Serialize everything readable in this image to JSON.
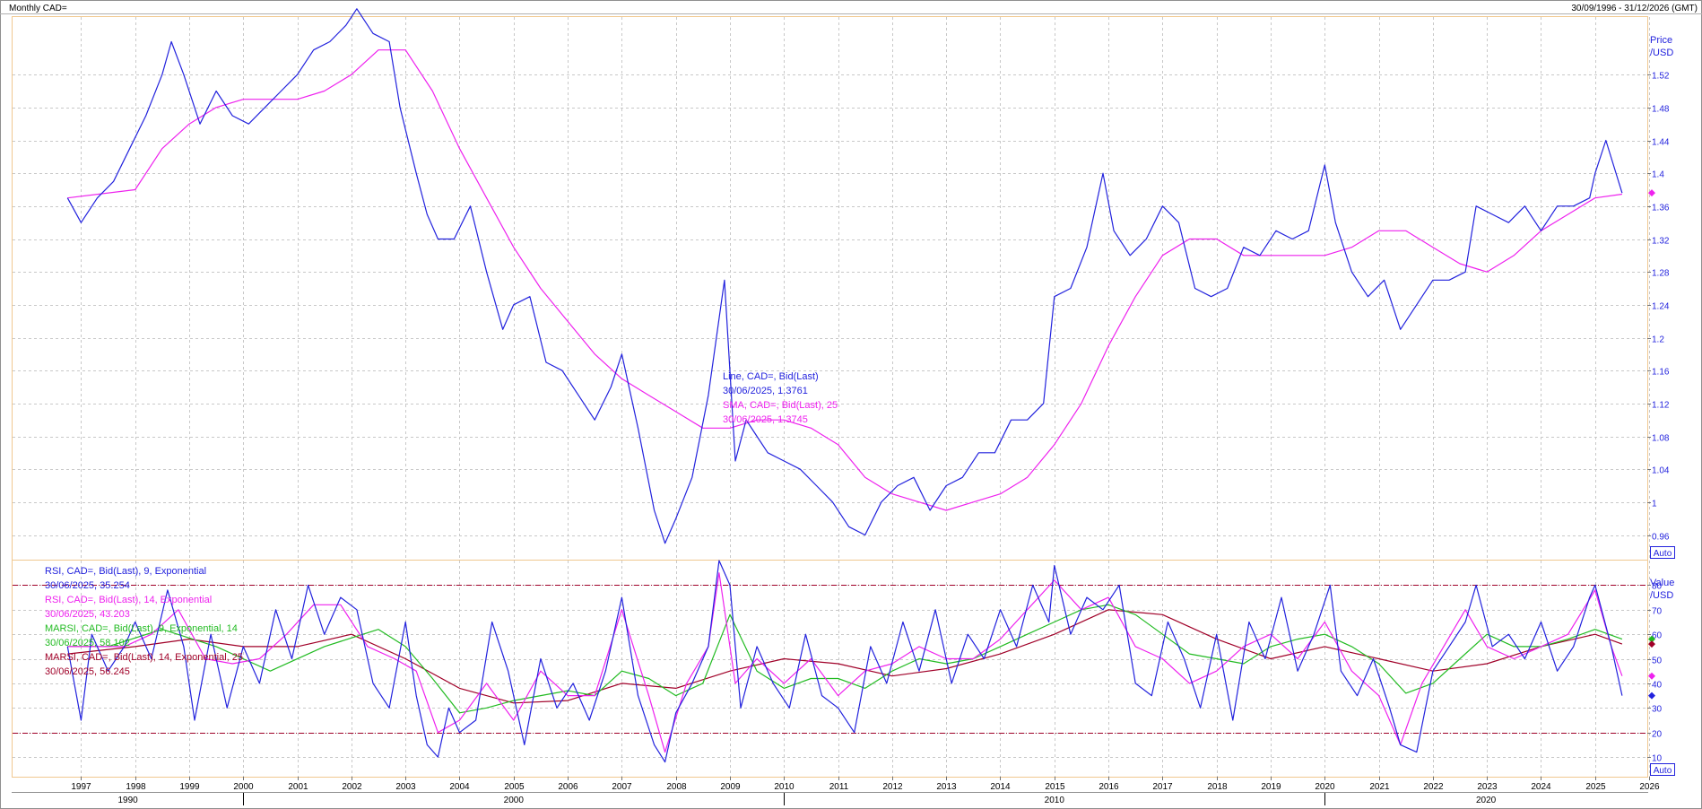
{
  "header": {
    "title": "Monthly CAD=",
    "range": "30/09/1996 - 31/12/2026 (GMT)"
  },
  "price_panel": {
    "axis_title_1": "Price",
    "axis_title_2": "/USD",
    "auto_label": "Auto",
    "legend": [
      {
        "text": "Line, CAD=, Bid(Last)",
        "color": "#2222dd"
      },
      {
        "text": "30/06/2025, 1.3761",
        "color": "#2222dd"
      },
      {
        "text": "SMA, CAD=, Bid(Last),  25",
        "color": "#ee22ee"
      },
      {
        "text": "30/06/2025, 1.3745",
        "color": "#ee22ee"
      }
    ]
  },
  "rsi_panel": {
    "axis_title_1": "Value",
    "axis_title_2": "/USD",
    "auto_label": "Auto",
    "legend": [
      {
        "text": "RSI, CAD=, Bid(Last),  9, Exponential",
        "color": "#2222dd"
      },
      {
        "text": "30/06/2025, 35.254",
        "color": "#2222dd"
      },
      {
        "text": "RSI, CAD=, Bid(Last),  14, Exponential",
        "color": "#ee22ee"
      },
      {
        "text": "30/06/2025, 43.203",
        "color": "#ee22ee"
      },
      {
        "text": "MARSI, CAD=, Bid(Last),  9, Exponential, 14",
        "color": "#22bb22"
      },
      {
        "text": "30/06/2025, 58.102",
        "color": "#22bb22"
      },
      {
        "text": "MARSI, CAD=, Bid(Last),  14, Exponential, 25",
        "color": "#a00028"
      },
      {
        "text": "30/06/2025, 56.245",
        "color": "#a00028"
      }
    ]
  },
  "colors": {
    "line": "#2222dd",
    "sma": "#ee22ee",
    "rsi9": "#2222dd",
    "rsi14": "#ee22ee",
    "marsi9": "#22bb22",
    "marsi14": "#a00028",
    "grid": "#c8c8c8",
    "panel_border": "#f0c890",
    "ref_line": "#a00028"
  },
  "chart_data": [
    {
      "type": "line",
      "title": "Monthly CAD=",
      "ylabel": "Price /USD",
      "ylim": [
        0.93,
        1.59
      ],
      "yticks": [
        "1.52",
        "1.48",
        "1.44",
        "1.4",
        "1.36",
        "1.32",
        "1.28",
        "1.24",
        "1.2",
        "1.16",
        "1.12",
        "1.08",
        "1.04",
        "1",
        "0.96"
      ],
      "x_range": [
        "1996-09",
        "2026-12"
      ],
      "series": [
        {
          "name": "Line, CAD=, Bid(Last)",
          "x": [
            1996.75,
            1997.0,
            1997.3,
            1997.6,
            1997.9,
            1998.2,
            1998.5,
            1998.67,
            1998.9,
            1999.2,
            1999.5,
            1999.8,
            2000.1,
            2000.4,
            2000.7,
            2001.0,
            2001.3,
            2001.6,
            2001.9,
            2002.1,
            2002.4,
            2002.7,
            2002.9,
            2003.2,
            2003.4,
            2003.6,
            2003.9,
            2004.2,
            2004.5,
            2004.8,
            2005.0,
            2005.3,
            2005.6,
            2005.9,
            2006.2,
            2006.5,
            2006.8,
            2007.0,
            2007.3,
            2007.6,
            2007.8,
            2008.0,
            2008.3,
            2008.6,
            2008.9,
            2009.1,
            2009.3,
            2009.5,
            2009.7,
            2010.0,
            2010.3,
            2010.6,
            2010.9,
            2011.2,
            2011.5,
            2011.8,
            2012.1,
            2012.4,
            2012.7,
            2013.0,
            2013.3,
            2013.6,
            2013.9,
            2014.2,
            2014.5,
            2014.8,
            2015.0,
            2015.3,
            2015.6,
            2015.9,
            2016.1,
            2016.4,
            2016.7,
            2017.0,
            2017.3,
            2017.6,
            2017.9,
            2018.2,
            2018.5,
            2018.8,
            2019.1,
            2019.4,
            2019.7,
            2020.0,
            2020.2,
            2020.5,
            2020.8,
            2021.1,
            2021.4,
            2021.7,
            2022.0,
            2022.3,
            2022.6,
            2022.8,
            2023.1,
            2023.4,
            2023.7,
            2024.0,
            2024.3,
            2024.6,
            2024.9,
            2025.0,
            2025.2,
            2025.5
          ],
          "values": [
            1.37,
            1.34,
            1.37,
            1.39,
            1.43,
            1.47,
            1.52,
            1.56,
            1.52,
            1.46,
            1.5,
            1.47,
            1.46,
            1.48,
            1.5,
            1.52,
            1.55,
            1.56,
            1.58,
            1.6,
            1.57,
            1.56,
            1.48,
            1.4,
            1.35,
            1.32,
            1.32,
            1.36,
            1.28,
            1.21,
            1.24,
            1.25,
            1.17,
            1.16,
            1.13,
            1.1,
            1.14,
            1.18,
            1.09,
            0.99,
            0.95,
            0.98,
            1.03,
            1.13,
            1.27,
            1.05,
            1.1,
            1.08,
            1.06,
            1.05,
            1.04,
            1.02,
            1.0,
            0.97,
            0.96,
            1.0,
            1.02,
            1.03,
            0.99,
            1.02,
            1.03,
            1.06,
            1.06,
            1.1,
            1.1,
            1.12,
            1.25,
            1.26,
            1.31,
            1.4,
            1.33,
            1.3,
            1.32,
            1.36,
            1.34,
            1.26,
            1.25,
            1.26,
            1.31,
            1.3,
            1.33,
            1.32,
            1.33,
            1.41,
            1.34,
            1.28,
            1.25,
            1.27,
            1.21,
            1.24,
            1.27,
            1.27,
            1.28,
            1.36,
            1.35,
            1.34,
            1.36,
            1.33,
            1.36,
            1.36,
            1.37,
            1.4,
            1.44,
            1.376
          ]
        },
        {
          "name": "SMA, CAD=, Bid(Last),  25",
          "x": [
            1996.75,
            1998.0,
            1998.5,
            1999.0,
            1999.5,
            2000.0,
            2000.5,
            2001.0,
            2001.5,
            2002.0,
            2002.5,
            2003.0,
            2003.5,
            2004.0,
            2004.5,
            2005.0,
            2005.5,
            2006.0,
            2006.5,
            2007.0,
            2007.5,
            2008.0,
            2008.5,
            2009.0,
            2009.5,
            2010.0,
            2010.5,
            2011.0,
            2011.5,
            2012.0,
            2012.5,
            2013.0,
            2013.5,
            2014.0,
            2014.5,
            2015.0,
            2015.5,
            2016.0,
            2016.5,
            2017.0,
            2017.5,
            2018.0,
            2018.5,
            2019.0,
            2019.5,
            2020.0,
            2020.5,
            2021.0,
            2021.5,
            2022.0,
            2022.5,
            2023.0,
            2023.5,
            2024.0,
            2024.5,
            2025.0,
            2025.5
          ],
          "values": [
            1.37,
            1.38,
            1.43,
            1.46,
            1.48,
            1.49,
            1.49,
            1.49,
            1.5,
            1.52,
            1.55,
            1.55,
            1.5,
            1.43,
            1.37,
            1.31,
            1.26,
            1.22,
            1.18,
            1.15,
            1.13,
            1.11,
            1.09,
            1.09,
            1.1,
            1.1,
            1.09,
            1.07,
            1.03,
            1.01,
            1.0,
            0.99,
            1.0,
            1.01,
            1.03,
            1.07,
            1.12,
            1.19,
            1.25,
            1.3,
            1.32,
            1.32,
            1.3,
            1.3,
            1.3,
            1.3,
            1.31,
            1.33,
            1.33,
            1.31,
            1.29,
            1.28,
            1.3,
            1.33,
            1.35,
            1.37,
            1.3745
          ]
        }
      ]
    },
    {
      "type": "line",
      "ylabel": "Value /USD",
      "ylim": [
        2,
        90
      ],
      "yticks": [
        "80",
        "70",
        "60",
        "50",
        "40",
        "30",
        "20",
        "10"
      ],
      "reference_lines": [
        80,
        20
      ],
      "series": [
        {
          "name": "RSI, CAD=, Bid(Last),  9, Exponential",
          "x": [
            1996.75,
            1997.0,
            1997.2,
            1997.5,
            1997.8,
            1998.0,
            1998.3,
            1998.6,
            1998.9,
            1999.1,
            1999.4,
            1999.7,
            2000.0,
            2000.3,
            2000.6,
            2000.9,
            2001.2,
            2001.5,
            2001.8,
            2002.1,
            2002.4,
            2002.7,
            2003.0,
            2003.2,
            2003.4,
            2003.6,
            2003.8,
            2004.0,
            2004.3,
            2004.6,
            2004.9,
            2005.2,
            2005.5,
            2005.8,
            2006.1,
            2006.4,
            2006.7,
            2007.0,
            2007.3,
            2007.6,
            2007.8,
            2008.0,
            2008.3,
            2008.6,
            2008.8,
            2009.0,
            2009.2,
            2009.5,
            2009.8,
            2010.1,
            2010.4,
            2010.7,
            2011.0,
            2011.3,
            2011.6,
            2011.9,
            2012.2,
            2012.5,
            2012.8,
            2013.1,
            2013.4,
            2013.7,
            2014.0,
            2014.3,
            2014.6,
            2014.9,
            2015.0,
            2015.3,
            2015.6,
            2015.9,
            2016.2,
            2016.5,
            2016.8,
            2017.1,
            2017.4,
            2017.7,
            2018.0,
            2018.3,
            2018.6,
            2018.9,
            2019.2,
            2019.5,
            2019.8,
            2020.1,
            2020.3,
            2020.6,
            2020.9,
            2021.2,
            2021.4,
            2021.7,
            2022.0,
            2022.3,
            2022.6,
            2022.8,
            2023.1,
            2023.4,
            2023.7,
            2024.0,
            2024.3,
            2024.6,
            2024.9,
            2025.0,
            2025.3,
            2025.5
          ],
          "values": [
            55,
            25,
            60,
            45,
            55,
            65,
            50,
            78,
            55,
            25,
            60,
            30,
            55,
            40,
            70,
            50,
            80,
            60,
            75,
            70,
            40,
            30,
            65,
            35,
            15,
            10,
            30,
            20,
            25,
            65,
            45,
            15,
            50,
            30,
            40,
            25,
            45,
            75,
            35,
            15,
            8,
            28,
            40,
            55,
            90,
            80,
            30,
            55,
            40,
            30,
            60,
            35,
            30,
            20,
            55,
            40,
            65,
            45,
            70,
            40,
            60,
            50,
            70,
            55,
            80,
            65,
            88,
            60,
            75,
            70,
            80,
            40,
            35,
            65,
            50,
            30,
            60,
            25,
            65,
            50,
            75,
            45,
            60,
            80,
            45,
            35,
            50,
            30,
            15,
            12,
            45,
            55,
            65,
            80,
            55,
            60,
            50,
            65,
            45,
            55,
            75,
            80,
            55,
            35
          ]
        },
        {
          "name": "RSI, CAD=, Bid(Last),  14, Exponential",
          "x": [
            1996.75,
            1997.2,
            1997.8,
            1998.3,
            1998.8,
            1999.3,
            1999.8,
            2000.3,
            2000.8,
            2001.3,
            2001.8,
            2002.3,
            2002.8,
            2003.2,
            2003.6,
            2004.0,
            2004.5,
            2005.0,
            2005.5,
            2006.0,
            2006.5,
            2007.0,
            2007.5,
            2007.8,
            2008.2,
            2008.6,
            2008.8,
            2009.1,
            2009.5,
            2010.0,
            2010.5,
            2011.0,
            2011.5,
            2012.0,
            2012.5,
            2013.0,
            2013.5,
            2014.0,
            2014.5,
            2015.0,
            2015.5,
            2016.0,
            2016.5,
            2017.0,
            2017.5,
            2018.0,
            2018.5,
            2019.0,
            2019.5,
            2020.0,
            2020.5,
            2021.0,
            2021.4,
            2021.8,
            2022.2,
            2022.6,
            2023.0,
            2023.5,
            2024.0,
            2024.5,
            2025.0,
            2025.3,
            2025.5
          ],
          "values": [
            55,
            55,
            55,
            60,
            70,
            50,
            48,
            50,
            60,
            72,
            72,
            55,
            50,
            45,
            20,
            25,
            40,
            25,
            45,
            35,
            35,
            70,
            35,
            12,
            40,
            55,
            85,
            40,
            50,
            40,
            50,
            35,
            45,
            48,
            55,
            50,
            50,
            58,
            70,
            82,
            70,
            75,
            55,
            50,
            40,
            45,
            55,
            60,
            50,
            65,
            45,
            35,
            15,
            40,
            55,
            70,
            55,
            50,
            55,
            60,
            78,
            55,
            43
          ]
        },
        {
          "name": "MARSI, CAD=, Bid(Last),  9, Exponential, 14",
          "x": [
            1996.75,
            1997.5,
            1998.5,
            1999.5,
            2000.5,
            2001.5,
            2002.5,
            2003.0,
            2003.5,
            2004.0,
            2004.5,
            2005.0,
            2005.5,
            2006.0,
            2006.5,
            2007.0,
            2007.5,
            2008.0,
            2008.5,
            2009.0,
            2009.5,
            2010.0,
            2010.5,
            2011.0,
            2011.5,
            2012.0,
            2012.5,
            2013.0,
            2013.5,
            2014.0,
            2014.5,
            2015.0,
            2015.5,
            2016.0,
            2016.5,
            2017.0,
            2017.5,
            2018.0,
            2018.5,
            2019.0,
            2019.5,
            2020.0,
            2020.5,
            2021.0,
            2021.5,
            2022.0,
            2022.5,
            2023.0,
            2023.5,
            2024.0,
            2024.5,
            2025.0,
            2025.5
          ],
          "values": [
            55,
            55,
            62,
            55,
            45,
            55,
            62,
            55,
            42,
            28,
            30,
            33,
            35,
            37,
            35,
            45,
            42,
            35,
            40,
            68,
            45,
            38,
            42,
            42,
            38,
            45,
            50,
            48,
            50,
            55,
            60,
            65,
            70,
            72,
            68,
            60,
            52,
            50,
            48,
            55,
            58,
            60,
            55,
            48,
            36,
            40,
            50,
            60,
            55,
            55,
            58,
            62,
            58
          ]
        },
        {
          "name": "MARSI, CAD=, Bid(Last),  14, Exponential, 25",
          "x": [
            1996.75,
            1998.0,
            1999.0,
            2000.0,
            2001.0,
            2002.0,
            2003.0,
            2004.0,
            2005.0,
            2006.0,
            2007.0,
            2008.0,
            2009.0,
            2010.0,
            2011.0,
            2012.0,
            2013.0,
            2014.0,
            2015.0,
            2016.0,
            2017.0,
            2018.0,
            2019.0,
            2020.0,
            2021.0,
            2022.0,
            2023.0,
            2024.0,
            2025.0,
            2025.5
          ],
          "values": [
            52,
            55,
            58,
            55,
            55,
            60,
            50,
            38,
            32,
            33,
            40,
            38,
            45,
            50,
            48,
            43,
            46,
            52,
            60,
            70,
            68,
            58,
            50,
            55,
            50,
            45,
            48,
            55,
            60,
            56
          ]
        }
      ]
    }
  ],
  "x_axis": {
    "years": [
      "1997",
      "1998",
      "1999",
      "2000",
      "2001",
      "2002",
      "2003",
      "2004",
      "2005",
      "2006",
      "2007",
      "2008",
      "2009",
      "2010",
      "2011",
      "2012",
      "2013",
      "2014",
      "2015",
      "2016",
      "2017",
      "2018",
      "2019",
      "2020",
      "2021",
      "2022",
      "2023",
      "2024",
      "2025",
      "2026"
    ],
    "decades": [
      "1990",
      "2000",
      "2010",
      "2020"
    ]
  }
}
